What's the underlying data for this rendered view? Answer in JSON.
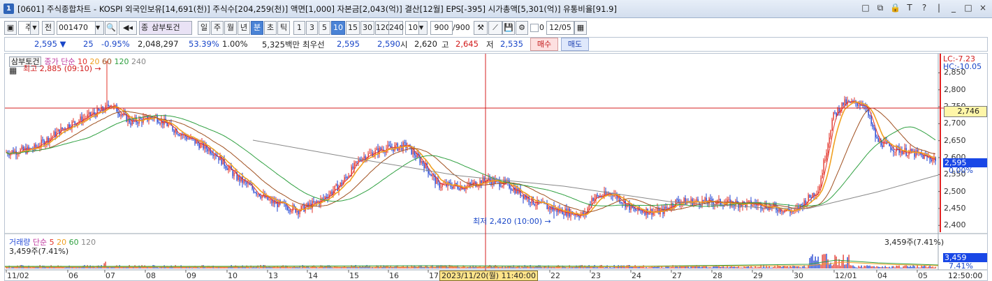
{
  "window": {
    "number": "1",
    "title": "[0601] 주식종합차트 - KOSPI 외국인보유[14,691(천)] 주식수[204,259(천)] 액면[1,000] 자본금[2,043(억)] 결산[12월] EPS[-395] 시가총액[5,301(억)] 유통비율[91.9]",
    "controls": [
      "□",
      "⧉",
      "🔒",
      "T",
      "?",
      "|",
      "_",
      "□",
      "×"
    ]
  },
  "toolbar": {
    "market": "주",
    "range": "전",
    "code": "001470",
    "stock_name": "삼부토건",
    "periods": [
      "일",
      "주",
      "월",
      "년",
      "분",
      "초",
      "틱"
    ],
    "selected_period": "분",
    "intervals": [
      "1",
      "3",
      "5",
      "10",
      "15",
      "30",
      "120",
      "240"
    ],
    "selected_interval": "10",
    "interval_value": "10",
    "count": "900",
    "count_total": "/900",
    "checkbox_label": "0",
    "date": "12/05"
  },
  "quote": {
    "price": "2,595",
    "change": "25",
    "change_pct": "-0.95%",
    "volume": "2,048,297",
    "vol_ratio": "53.39%",
    "turnover": "1.00%",
    "amount": "5,325백만",
    "best_label": "최우선",
    "best_ask": "2,595",
    "best_bid": "2,590",
    "open_label": "시",
    "open": "2,620",
    "high_label": "고",
    "high": "2,645",
    "low_label": "저",
    "low": "2,535",
    "buy": "매수",
    "sell": "매도"
  },
  "legend": {
    "tab": "삼부토건",
    "ma_label": "종가 단순",
    "ma_periods": [
      "10",
      "20",
      "60",
      "120",
      "240"
    ],
    "ma_colors": [
      "#e3332a",
      "#f0a020",
      "#a05020",
      "#2fa040",
      "#888888"
    ],
    "high_marker": "최고 2,885 (09:10)",
    "low_marker": "최저 2,420 (10:00)",
    "lc": "LC:-7.23",
    "hc": "HC:-10.05"
  },
  "y_axis": {
    "labels": [
      "2,850",
      "2,800",
      "2,750",
      "2,700",
      "2,650",
      "2,600",
      "2,550",
      "2,500",
      "2,450",
      "2,400"
    ],
    "crosshair_value": "2,746",
    "current": "2,595",
    "current_pct": "0.00%"
  },
  "volume": {
    "title": "거래량",
    "ma_label": "단순",
    "ma_periods": [
      "5",
      "20",
      "60",
      "120"
    ],
    "ma_colors": [
      "#e3332a",
      "#f0a020",
      "#2fa040",
      "#888888"
    ],
    "value_left": "3,459주(7.41%)",
    "value_right": "3,459주(7.41%)",
    "current": "3,459",
    "current_pct": "7.41%"
  },
  "x_axis": {
    "labels": [
      "11/02",
      "06",
      "07",
      "08",
      "09",
      "10",
      "13",
      "14",
      "15",
      "16",
      "17",
      "22",
      "23",
      "24",
      "27",
      "28",
      "29",
      "30",
      "12/01",
      "04",
      "05"
    ],
    "crosshair_label": "2023/11/20(월) 11:40:00",
    "time": "12:50:00"
  },
  "colors": {
    "up": "#e3332a",
    "down": "#1c3fd1",
    "ma5": "#e3332a",
    "ma10": "#f0a020",
    "ma20": "#a05020",
    "ma60": "#2fa040",
    "ma120": "#888888",
    "crosshair": "#d42020"
  }
}
